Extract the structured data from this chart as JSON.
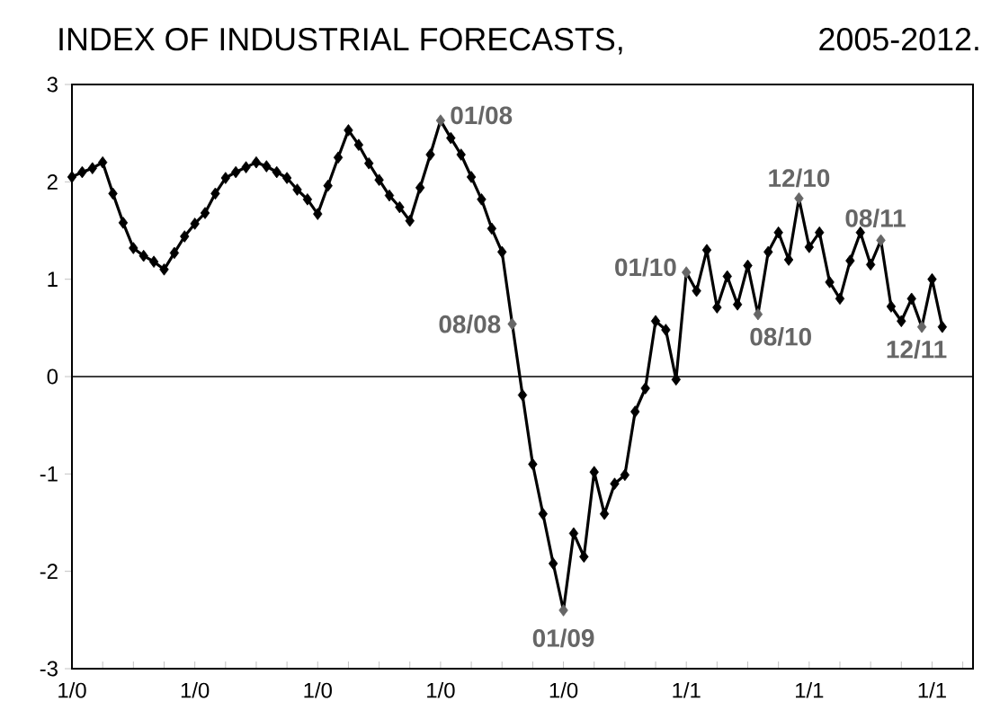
{
  "chart_data": {
    "type": "line",
    "title": "INDEX OF INDUSTRIAL FORECASTS,",
    "subtitle": "2005-2012.",
    "x": [
      "2005-01",
      "2005-02",
      "2005-03",
      "2005-04",
      "2005-05",
      "2005-06",
      "2005-07",
      "2005-08",
      "2005-09",
      "2005-10",
      "2005-11",
      "2005-12",
      "2006-01",
      "2006-02",
      "2006-03",
      "2006-04",
      "2006-05",
      "2006-06",
      "2006-07",
      "2006-08",
      "2006-09",
      "2006-10",
      "2006-11",
      "2006-12",
      "2007-01",
      "2007-02",
      "2007-03",
      "2007-04",
      "2007-05",
      "2007-06",
      "2007-07",
      "2007-08",
      "2007-09",
      "2007-10",
      "2007-11",
      "2007-12",
      "2008-01",
      "2008-02",
      "2008-03",
      "2008-04",
      "2008-05",
      "2008-06",
      "2008-07",
      "2008-08",
      "2008-09",
      "2008-10",
      "2008-11",
      "2008-12",
      "2009-01",
      "2009-02",
      "2009-03",
      "2009-04",
      "2009-05",
      "2009-06",
      "2009-07",
      "2009-08",
      "2009-09",
      "2009-10",
      "2009-11",
      "2009-12",
      "2010-01",
      "2010-02",
      "2010-03",
      "2010-04",
      "2010-05",
      "2010-06",
      "2010-07",
      "2010-08",
      "2010-09",
      "2010-10",
      "2010-11",
      "2010-12",
      "2011-01",
      "2011-02",
      "2011-03",
      "2011-04",
      "2011-05",
      "2011-06",
      "2011-07",
      "2011-08",
      "2011-09",
      "2011-10",
      "2011-11",
      "2011-12",
      "2012-01",
      "2012-02"
    ],
    "series": [
      {
        "color": "#000000",
        "values": [
          2.05,
          2.1,
          2.14,
          2.2,
          1.88,
          1.58,
          1.32,
          1.24,
          1.18,
          1.1,
          1.27,
          1.44,
          1.57,
          1.68,
          1.88,
          2.04,
          2.1,
          2.15,
          2.2,
          2.16,
          2.1,
          2.04,
          1.92,
          1.82,
          1.67,
          1.96,
          2.25,
          2.53,
          2.38,
          2.19,
          2.02,
          1.86,
          1.74,
          1.6,
          1.94,
          2.28,
          2.63,
          2.45,
          2.28,
          2.05,
          1.82,
          1.52,
          1.28,
          0.54,
          -0.19,
          -0.9,
          -1.41,
          -1.92,
          -2.4,
          -1.61,
          -1.85,
          -0.98,
          -1.41,
          -1.1,
          -1.01,
          -0.36,
          -0.12,
          0.57,
          0.48,
          -0.03,
          1.07,
          0.88,
          1.3,
          0.71,
          1.03,
          0.74,
          1.14,
          0.64,
          1.28,
          1.48,
          1.2,
          1.83,
          1.33,
          1.48,
          0.97,
          0.8,
          1.19,
          1.48,
          1.15,
          1.4,
          0.72,
          0.57,
          0.8,
          0.51,
          1.0,
          0.51
        ],
        "colors": [
          "#000000",
          "#000000",
          "#000000",
          "#000000",
          "#000000",
          "#000000",
          "#000000",
          "#000000",
          "#000000",
          "#000000",
          "#000000",
          "#000000",
          "#000000",
          "#000000",
          "#000000",
          "#000000",
          "#000000",
          "#000000",
          "#000000",
          "#000000",
          "#000000",
          "#000000",
          "#000000",
          "#000000",
          "#000000",
          "#000000",
          "#000000",
          "#000000",
          "#000000",
          "#000000",
          "#000000",
          "#000000",
          "#000000",
          "#000000",
          "#000000",
          "#000000",
          "#666666",
          "#000000",
          "#000000",
          "#000000",
          "#000000",
          "#000000",
          "#000000",
          "#666666",
          "#000000",
          "#000000",
          "#000000",
          "#000000",
          "#666666",
          "#000000",
          "#000000",
          "#000000",
          "#000000",
          "#000000",
          "#000000",
          "#000000",
          "#000000",
          "#000000",
          "#000000",
          "#000000",
          "#666666",
          "#000000",
          "#000000",
          "#000000",
          "#000000",
          "#000000",
          "#000000",
          "#666666",
          "#000000",
          "#000000",
          "#000000",
          "#666666",
          "#000000",
          "#000000",
          "#000000",
          "#000000",
          "#000000",
          "#000000",
          "#000000",
          "#666666",
          "#000000",
          "#000000",
          "#000000",
          "#666666",
          "#000000",
          "#000000"
        ]
      }
    ],
    "xlim": [
      "2005-01",
      "2012-05"
    ],
    "xticks": [
      {
        "value": "2005-01",
        "label": "1/0"
      },
      {
        "value": "2005-04",
        "label": null
      },
      {
        "value": "2005-07",
        "label": null
      },
      {
        "value": "2005-10",
        "label": null
      },
      {
        "value": "2006-01",
        "label": "1/0"
      },
      {
        "value": "2006-04",
        "label": null
      },
      {
        "value": "2006-07",
        "label": null
      },
      {
        "value": "2006-10",
        "label": null
      },
      {
        "value": "2007-01",
        "label": "1/0"
      },
      {
        "value": "2007-04",
        "label": null
      },
      {
        "value": "2007-07",
        "label": null
      },
      {
        "value": "2007-10",
        "label": null
      },
      {
        "value": "2008-01",
        "label": "1/0"
      },
      {
        "value": "2008-04",
        "label": null
      },
      {
        "value": "2008-07",
        "label": null
      },
      {
        "value": "2008-10",
        "label": null
      },
      {
        "value": "2009-01",
        "label": "1/0"
      },
      {
        "value": "2009-04",
        "label": null
      },
      {
        "value": "2009-07",
        "label": null
      },
      {
        "value": "2009-10",
        "label": null
      },
      {
        "value": "2010-01",
        "label": "1/1"
      },
      {
        "value": "2010-04",
        "label": null
      },
      {
        "value": "2010-07",
        "label": null
      },
      {
        "value": "2010-10",
        "label": null
      },
      {
        "value": "2011-01",
        "label": "1/1"
      },
      {
        "value": "2011-04",
        "label": null
      },
      {
        "value": "2011-07",
        "label": null
      },
      {
        "value": "2011-10",
        "label": null
      },
      {
        "value": "2012-01",
        "label": "1/1"
      },
      {
        "value": "2012-04",
        "label": null
      }
    ],
    "ylim": [
      -3,
      3
    ],
    "yticks": [
      -3,
      -2,
      -1,
      0,
      1,
      2,
      3
    ],
    "marker": "diamond",
    "line_style": "solid",
    "ref_lines": [
      {
        "axis": "y",
        "value": 0,
        "color": "#000000"
      }
    ],
    "annotations": [
      {
        "text": "01/08",
        "x": "2008-01",
        "y": 2.63
      },
      {
        "text": "08/08",
        "x": "2008-08",
        "y": 0.54
      },
      {
        "text": "01/09",
        "x": "2009-01",
        "y": -2.4
      },
      {
        "text": "01/10",
        "x": "2010-01",
        "y": 1.07
      },
      {
        "text": "08/10",
        "x": "2010-08",
        "y": 0.64
      },
      {
        "text": "12/10",
        "x": "2010-12",
        "y": 1.83
      },
      {
        "text": "08/11",
        "x": "2011-08",
        "y": 1.4
      },
      {
        "text": "12/11",
        "x": "2011-12",
        "y": 0.51
      }
    ]
  }
}
